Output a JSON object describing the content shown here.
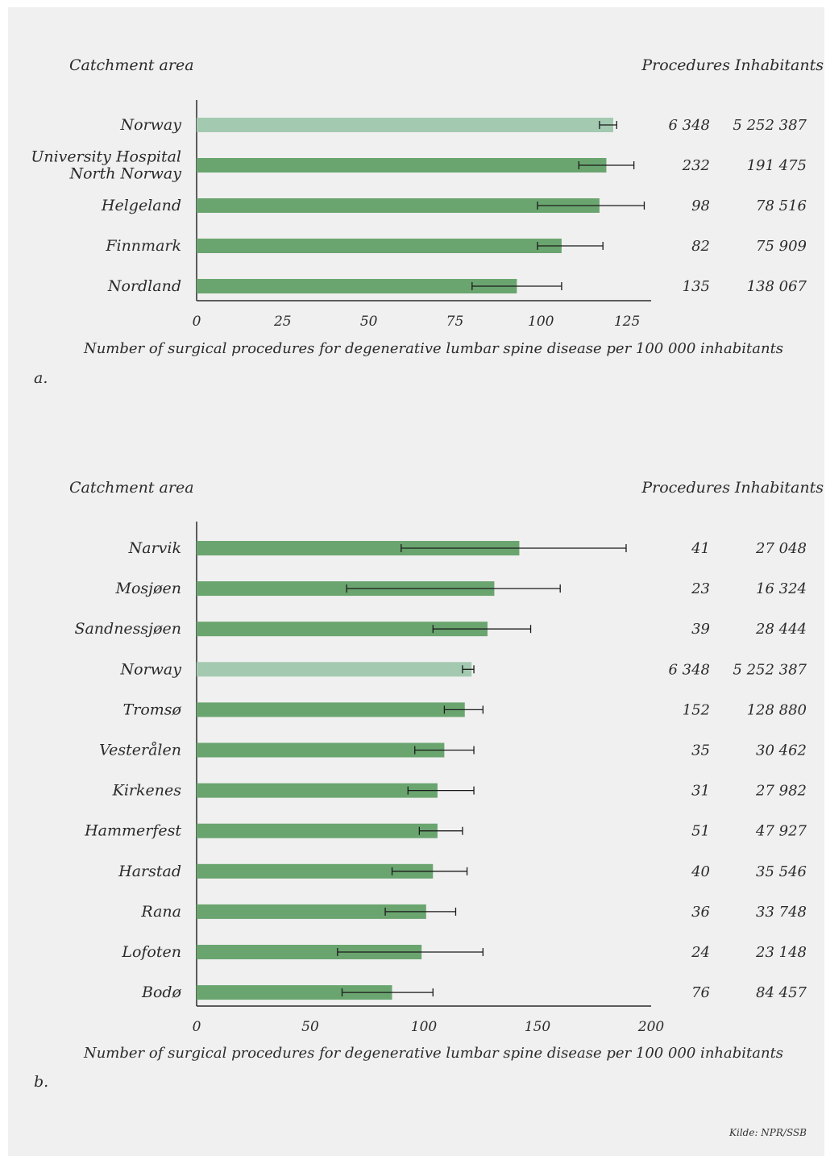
{
  "chart_data": [
    {
      "type": "bar",
      "panel_label": "a.",
      "category_header": "Catchment area",
      "xlabel": "Number of surgical procedures for degenerative lumbar spine disease per 100 000 inhabitants",
      "xlim": [
        0,
        132
      ],
      "xticks": [
        0,
        25,
        50,
        75,
        100,
        125
      ],
      "columns": [
        "Procedures",
        "Inhabitants"
      ],
      "colors": {
        "bar": "#6aa56f",
        "highlight": "#a3c9b0",
        "error": "#1a1a1a"
      },
      "categories": [
        "Norway",
        "University Hospital\nNorth Norway",
        "Helgeland",
        "Finnmark",
        "Nordland"
      ],
      "highlight": [
        true,
        false,
        false,
        false,
        false
      ],
      "values": [
        121,
        119,
        117,
        106,
        93
      ],
      "error_low": [
        117,
        111,
        99,
        99,
        80
      ],
      "error_high": [
        122,
        127,
        130,
        118,
        106
      ],
      "procedures": [
        "6 348",
        "232",
        "98",
        "82",
        "135"
      ],
      "inhabitants": [
        "5 252 387",
        "191 475",
        "78 516",
        "75 909",
        "138 067"
      ]
    },
    {
      "type": "bar",
      "panel_label": "b.",
      "category_header": "Catchment area",
      "xlabel": "Number of surgical procedures for degenerative lumbar spine disease per 100 000 inhabitants",
      "xlim": [
        0,
        200
      ],
      "xticks": [
        0,
        50,
        100,
        150,
        200
      ],
      "columns": [
        "Procedures",
        "Inhabitants"
      ],
      "colors": {
        "bar": "#6aa56f",
        "highlight": "#a3c9b0",
        "error": "#1a1a1a"
      },
      "categories": [
        "Narvik",
        "Mosjøen",
        "Sandnessjøen",
        "Norway",
        "Tromsø",
        "Vesterålen",
        "Kirkenes",
        "Hammerfest",
        "Harstad",
        "Rana",
        "Lofoten",
        "Bodø"
      ],
      "highlight": [
        false,
        false,
        false,
        true,
        false,
        false,
        false,
        false,
        false,
        false,
        false,
        false
      ],
      "values": [
        142,
        131,
        128,
        121,
        118,
        109,
        106,
        106,
        104,
        101,
        99,
        86
      ],
      "error_low": [
        90,
        66,
        104,
        117,
        109,
        96,
        93,
        98,
        86,
        83,
        62,
        64
      ],
      "error_high": [
        189,
        160,
        147,
        122,
        126,
        122,
        122,
        117,
        119,
        114,
        126,
        104
      ],
      "procedures": [
        "41",
        "23",
        "39",
        "6 348",
        "152",
        "35",
        "31",
        "51",
        "40",
        "36",
        "24",
        "76"
      ],
      "inhabitants": [
        "27 048",
        "16 324",
        "28 444",
        "5 252 387",
        "128 880",
        "30 462",
        "27 982",
        "47 927",
        "35 546",
        "33 748",
        "23 148",
        "84 457"
      ]
    }
  ],
  "source": "Kilde: NPR/SSB"
}
